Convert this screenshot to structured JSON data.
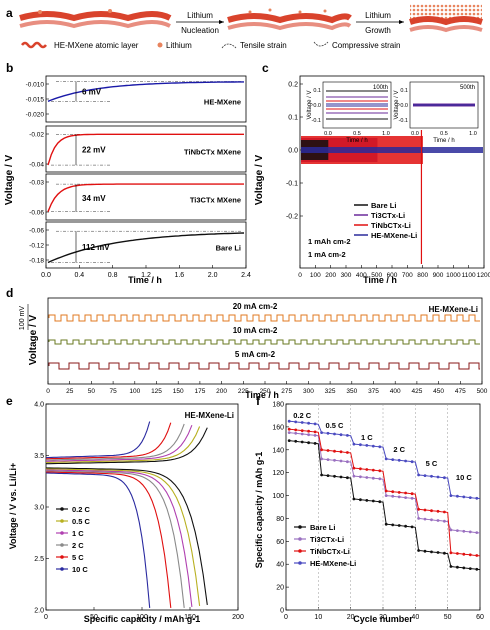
{
  "figure": {
    "panel_a": {
      "label": "a",
      "step1": "Lithium",
      "step1b": "Nucleation",
      "step2": "Lithium",
      "step2b": "Growth",
      "legend": [
        {
          "text": "HE-MXene atomic layer",
          "color": "#d9432c"
        },
        {
          "text": "Lithium",
          "color": "#e8845e"
        },
        {
          "text": "Tensile strain",
          "color": "#333333"
        },
        {
          "text": "Compressive strain",
          "color": "#333333"
        }
      ]
    },
    "panel_b": {
      "label": "b",
      "ylabel": "Voltage / V",
      "xlabel": "Time / h",
      "xticks": [
        "0.0",
        "0.4",
        "0.8",
        "1.2",
        "1.6",
        "2.0",
        "2.4"
      ],
      "subplots": [
        {
          "name": "HE-MXene",
          "annot": "6 mV",
          "color": "#1a1aa8",
          "yticks": [
            "-0.010",
            "-0.015",
            "-0.020"
          ]
        },
        {
          "name": "TiNbCTx MXene",
          "annot": "22 mV",
          "color": "#e01010",
          "yticks": [
            "-0.02",
            "-0.04"
          ]
        },
        {
          "name": "Ti3CTx MXene",
          "annot": "34 mV",
          "color": "#e01010",
          "yticks": [
            "-0.03",
            "-0.06"
          ]
        },
        {
          "name": "Bare Li",
          "annot": "112 mV",
          "color": "#111111",
          "yticks": [
            "-0.06",
            "-0.12",
            "-0.18"
          ]
        }
      ]
    },
    "panel_c": {
      "label": "c",
      "ylabel": "Voltage / V",
      "xlabel": "Time / h",
      "xticks": [
        "0",
        "100",
        "200",
        "300",
        "400",
        "500",
        "600",
        "700",
        "800",
        "900",
        "1000",
        "1100",
        "1200"
      ],
      "yticks": [
        "0.2",
        "0.1",
        "0.0",
        "-0.1",
        "-0.2"
      ],
      "inset1_title": "100th",
      "inset2_title": "500th",
      "inset_ylabel": "Voltage / V",
      "inset_xlabel": "Time / h",
      "inset_yticks": [
        "0.1",
        "0.0",
        "-0.1"
      ],
      "inset_xticks": [
        "0.0",
        "0.5",
        "1.0"
      ],
      "legend": [
        {
          "text": "Bare Li",
          "color": "#111111"
        },
        {
          "text": "Ti3CTx-Li",
          "color": "#6a2a9a"
        },
        {
          "text": "TiNbCTx-Li",
          "color": "#e01010"
        },
        {
          "text": "HE-MXene-Li",
          "color": "#2a2a9a"
        }
      ],
      "cond1": "1 mAh cm-2",
      "cond2": "1 mA cm-2"
    },
    "panel_d": {
      "label": "d",
      "ylabel": "Voltage / V",
      "xlabel": "Time / h",
      "scale": "100 mV",
      "title": "HE-MXene-Li",
      "xticks": [
        "0",
        "25",
        "50",
        "75",
        "100",
        "125",
        "150",
        "175",
        "200",
        "225",
        "250",
        "275",
        "300",
        "325",
        "350",
        "375",
        "400",
        "425",
        "450",
        "475",
        "500"
      ],
      "rates": [
        {
          "text": "20 mA cm-2",
          "color": "#e07820"
        },
        {
          "text": "10 mA cm-2",
          "color": "#6a7a20"
        },
        {
          "text": "5 mA cm-2",
          "color": "#8a1a1a"
        }
      ]
    },
    "panel_e": {
      "label": "e",
      "ylabel": "Voltage / V vs. Li/Li+",
      "xlabel": "Specific capacity / mAh g-1",
      "title": "HE-MXene-Li",
      "xticks": [
        "0",
        "50",
        "100",
        "150",
        "200"
      ],
      "yticks": [
        "2.0",
        "2.5",
        "3.0",
        "3.5",
        "4.0"
      ],
      "legend": [
        {
          "text": "0.2 C",
          "color": "#111111"
        },
        {
          "text": "0.5 C",
          "color": "#b8b020"
        },
        {
          "text": "1 C",
          "color": "#b040b0"
        },
        {
          "text": "2 C",
          "color": "#8a8a8a"
        },
        {
          "text": "5 C",
          "color": "#e01010"
        },
        {
          "text": "10 C",
          "color": "#2a2aa0"
        }
      ]
    },
    "panel_f": {
      "label": "f",
      "ylabel": "Specific capacity / mAh g-1",
      "xlabel": "Cycle number",
      "xticks": [
        "0",
        "10",
        "20",
        "30",
        "40",
        "50",
        "60"
      ],
      "yticks": [
        "0",
        "20",
        "40",
        "60",
        "80",
        "100",
        "120",
        "140",
        "160",
        "180"
      ],
      "rate_labels": [
        "0.2 C",
        "0.5 C",
        "1 C",
        "2 C",
        "5 C",
        "10 C"
      ],
      "legend": [
        {
          "text": "Bare Li",
          "color": "#111111"
        },
        {
          "text": "Ti3CTx-Li",
          "color": "#9a70c0"
        },
        {
          "text": "TiNbCTx-Li",
          "color": "#e01010"
        },
        {
          "text": "HE-MXene-Li",
          "color": "#4a4ac0"
        }
      ]
    }
  }
}
